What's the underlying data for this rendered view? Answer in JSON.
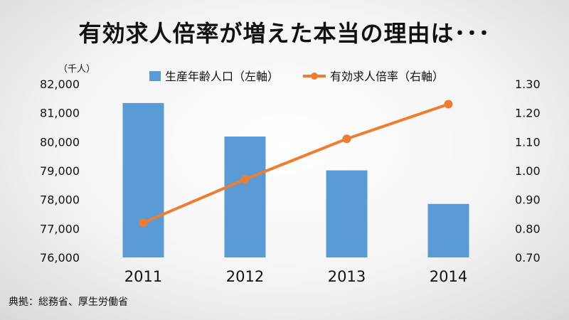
{
  "title": "有効求人倍率が増えた本当の理由は･･･",
  "source": "典拠：総務省、厚生労働省",
  "chart_data": {
    "type": "bar",
    "categories": [
      "2011",
      "2012",
      "2013",
      "2014"
    ],
    "left_unit": "（千人）",
    "left_axis": {
      "min": 76000,
      "max": 82000,
      "step": 1000,
      "ticks": [
        "76,000",
        "77,000",
        "78,000",
        "79,000",
        "80,000",
        "81,000",
        "82,000"
      ]
    },
    "right_axis": {
      "min": 0.7,
      "max": 1.3,
      "step": 0.1,
      "ticks": [
        "0.70",
        "0.80",
        "0.90",
        "1.00",
        "1.10",
        "1.20",
        "1.30"
      ]
    },
    "series": [
      {
        "name": "生産年齢人口（左軸）",
        "type": "bar",
        "axis": "left",
        "values": [
          81340,
          80180,
          79010,
          77850
        ]
      },
      {
        "name": "有効求人倍率（右軸）",
        "type": "line",
        "axis": "right",
        "values": [
          0.82,
          0.97,
          1.11,
          1.23
        ]
      }
    ],
    "legend_position": "top",
    "colors": {
      "bar": "#5b9bd5",
      "line": "#ed7d31"
    }
  }
}
